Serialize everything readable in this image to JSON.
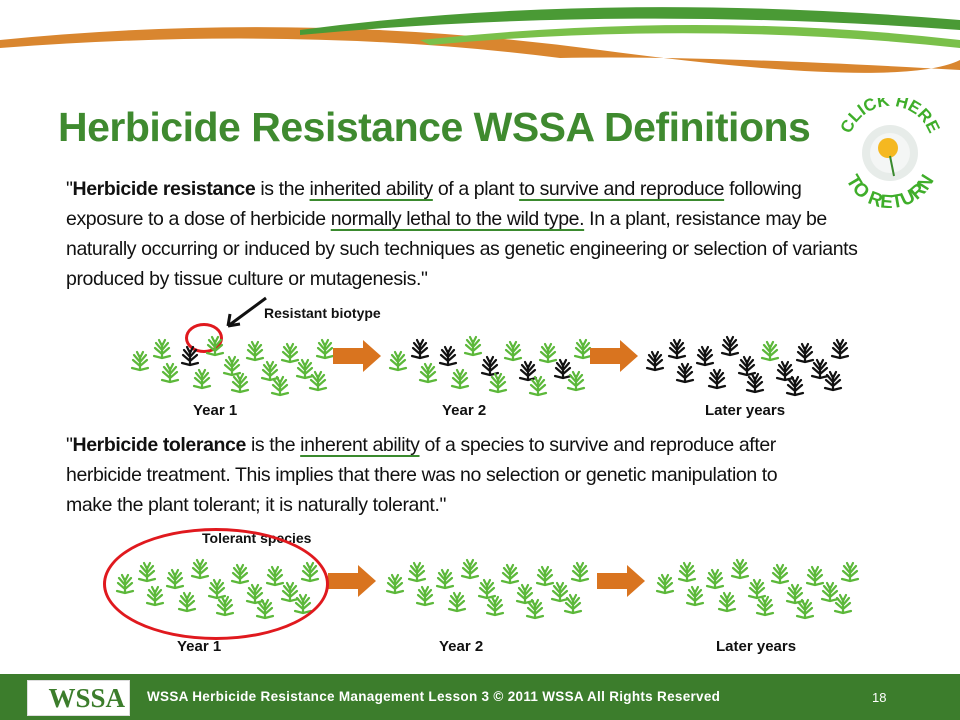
{
  "slide": {
    "title": "Herbicide Resistance WSSA Definitions",
    "page_number": "18"
  },
  "resistance": {
    "quote_open": "\"",
    "term": "Herbicide resistance",
    "t1": " is the ",
    "u1": "inherited ability",
    "t2": " of a plant ",
    "u2": "to survive and reproduce",
    "t3": " following exposure to a dose of herbicide ",
    "u3": "normally lethal to the wild type.",
    "t4": " In a plant, resistance may be naturally occurring or induced by such techniques as genetic engineering or selection of variants produced by tissue culture or mutagenesis.\"",
    "annotation": "Resistant biotype",
    "years": [
      "Year 1",
      "Year 2",
      "Later years"
    ]
  },
  "tolerance": {
    "quote_open": "\"",
    "term": "Herbicide tolerance",
    "t1": " is the ",
    "u1": "inherent ability",
    "t2": " of a species to survive and reproduce after herbicide treatment. This implies that there was no selection or genetic manipulation to make the plant tolerant; it is naturally tolerant.\"",
    "annotation": "Tolerant species",
    "years": [
      "Year 1",
      "Year 2",
      "Later years"
    ]
  },
  "return_button": {
    "top": "CLICK HERE",
    "bottom": "TO RETURN",
    "icon": "dandelion-icon"
  },
  "footer": {
    "logo": "WSSA",
    "text": "WSSA Herbicide Resistance Management Lesson 3 © 2011 WSSA All Rights Reserved"
  },
  "colors": {
    "title": "#3f8a2f",
    "susceptible": "#5cb83a",
    "resistant": "#111111",
    "arrow": "#d9741f",
    "highlight": "#e0191e",
    "footer": "#3c7d2c"
  }
}
